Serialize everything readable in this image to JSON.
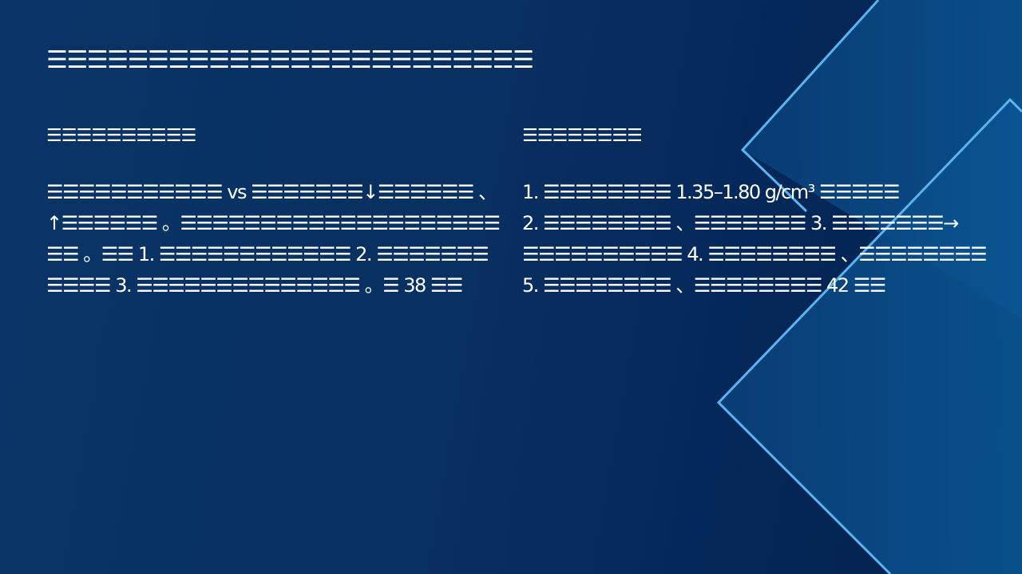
{
  "slide": {
    "title": "☰☰☰☰☰☰☰☰☰☰☰☰☰☰☰☰☰☰☰☰☰☰☰☰",
    "left": {
      "heading": "☰☰☰☰☰☰☰☰☰☰",
      "lines": [
        "☰☰☰☰☰☰☰☰☰☰☰ vs ☰☰☰☰☰☰☰↓☰☰☰☰☰☰ 、",
        "↑☰☰☰☰☰☰ 。☰☰☰☰☰☰☰☰☰☰☰☰☰☰☰☰☰☰☰☰",
        "☰☰ 。☰☰ 1. ☰☰☰☰☰☰☰☰☰☰☰☰ 2. ☰☰☰☰☰☰☰",
        "☰☰☰☰ 3. ☰☰☰☰☰☰☰☰☰☰☰☰☰☰ 。☰ 38 ☰☰"
      ]
    },
    "right": {
      "heading": "☰☰☰☰☰☰☰☰",
      "lines": [
        "1. ☰☰☰☰☰☰☰☰ 1.35–1.80 g/cm³ ☰☰☰☰☰",
        "2. ☰☰☰☰☰☰☰☰ 、☰☰☰☰☰☰☰ 3. ☰☰☰☰☰☰☰→",
        "☰☰☰☰☰☰☰☰☰☰ 4. ☰☰☰☰☰☰☰☰ 、☰☰☰☰☰☰☰☰",
        "5. ☰☰☰☰☰☰☰☰ 、☰☰☰☰☰☰☰☰ 42 ☰☰"
      ]
    }
  },
  "colors": {
    "background": "#083060",
    "shape": "#0a4f8a",
    "edge": "#5ab4f0",
    "text": "#ffffff"
  }
}
